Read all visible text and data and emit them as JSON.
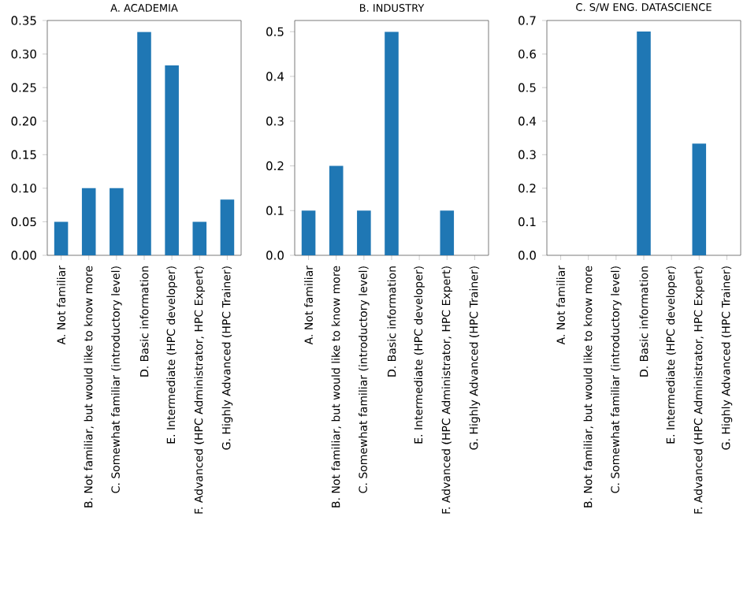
{
  "chart_data": [
    {
      "type": "bar",
      "title": "A. ACADEMIA",
      "categories": [
        "A.  Not familiar",
        "B.  Not familiar, but would like to know more",
        "C.  Somewhat familiar (introductory level)",
        "D.  Basic information",
        "E.  Intermediate (HPC developer)",
        "F.  Advanced (HPC Administrator, HPC Expert)",
        "G.  Highly Advanced (HPC Trainer)"
      ],
      "values": [
        0.05,
        0.1,
        0.1,
        0.333,
        0.283,
        0.05,
        0.083
      ],
      "color": "#1f77b4",
      "ylim": [
        0,
        0.35
      ],
      "yticks": [
        {
          "value": 0,
          "label": "0.00"
        },
        {
          "value": 0.05,
          "label": "0.05"
        },
        {
          "value": 0.1,
          "label": "0.10"
        },
        {
          "value": 0.15,
          "label": "0.15"
        },
        {
          "value": 0.2,
          "label": "0.20"
        },
        {
          "value": 0.25,
          "label": "0.25"
        },
        {
          "value": 0.3,
          "label": "0.30"
        },
        {
          "value": 0.35,
          "label": "0.35"
        }
      ]
    },
    {
      "type": "bar",
      "title": "B. INDUSTRY",
      "categories": [
        "A.  Not familiar",
        "B.  Not familiar, but would like to know more",
        "C.  Somewhat familiar (introductory level)",
        "D.  Basic information",
        "E.  Intermediate (HPC developer)",
        "F.  Advanced (HPC Administrator, HPC Expert)",
        "G.  Highly Advanced (HPC Trainer)"
      ],
      "values": [
        0.1,
        0.2,
        0.1,
        0.5,
        0,
        0.1,
        0
      ],
      "color": "#1f77b4",
      "ylim": [
        0,
        0.525
      ],
      "yticks": [
        {
          "value": 0,
          "label": "0.0"
        },
        0.1,
        0.2,
        0.3,
        0.4,
        0.5
      ]
    },
    {
      "type": "bar",
      "title": "C. S/W ENG. DATASCIENCE",
      "categories": [
        "A.  Not familiar",
        "B.  Not familiar, but would like to know more",
        "C.  Somewhat familiar (introductory level)",
        "D.  Basic information",
        "E.  Intermediate (HPC developer)",
        "F.  Advanced (HPC Administrator, HPC Expert)",
        "G.  Highly Advanced (HPC Trainer)"
      ],
      "values": [
        0,
        0,
        0,
        0.667,
        0,
        0.333,
        0
      ],
      "color": "#1f77b4",
      "ylim": [
        0,
        0.7
      ],
      "yticks": [
        {
          "value": 0,
          "label": "0.0"
        },
        0.1,
        0.2,
        0.3,
        0.4,
        0.5,
        0.6,
        0.7
      ]
    }
  ]
}
